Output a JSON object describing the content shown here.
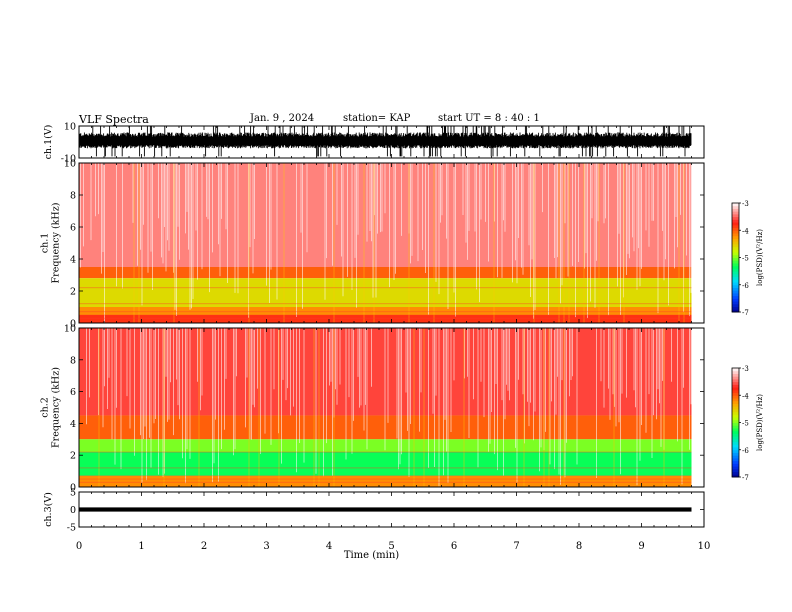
{
  "header": {
    "title": "VLF Spectra",
    "date": "Jan. 9 , 2024",
    "station": "station= KAP",
    "start": "start UT = 8 : 40 : 1"
  },
  "chart_data": [
    {
      "type": "line",
      "panel": "ch1-waveform",
      "ylabel": "ch.1(V)",
      "ylim": [
        -10,
        10
      ],
      "xlim": [
        0,
        10
      ],
      "yticks": [
        "10",
        "-10"
      ],
      "description_values": {
        "typical_upper": 6,
        "typical_lower": -4,
        "peak_upper": 10,
        "peak_lower": -9
      },
      "color": "#000000"
    },
    {
      "type": "heatmap",
      "panel": "ch1-spectrogram",
      "ylabel": "ch.1\nFrequency (kHz)",
      "ylim": [
        0,
        10
      ],
      "xlim": [
        0,
        10
      ],
      "yticks": [
        "0",
        "2",
        "4",
        "6",
        "8",
        "10"
      ],
      "data_end_x": 9.8,
      "bands": [
        {
          "from_khz": 3.5,
          "to_khz": 10,
          "level": -3.4
        },
        {
          "from_khz": 2.8,
          "to_khz": 3.5,
          "level": -4.0
        },
        {
          "from_khz": 1.0,
          "to_khz": 2.8,
          "level": -4.6
        },
        {
          "from_khz": 0.5,
          "to_khz": 1.0,
          "level": -4.2
        },
        {
          "from_khz": 0.0,
          "to_khz": 0.5,
          "level": -3.8
        }
      ],
      "colorbar": {
        "label": "log(PSD)(V²/Hz)",
        "min": -7,
        "max": -3,
        "ticks": [
          "-3",
          "-4",
          "-5",
          "-6",
          "-7"
        ]
      }
    },
    {
      "type": "heatmap",
      "panel": "ch2-spectrogram",
      "ylabel": "ch.2\nFrequency (kHz)",
      "ylim": [
        0,
        10
      ],
      "xlim": [
        0,
        10
      ],
      "yticks": [
        "0",
        "2",
        "4",
        "6",
        "8",
        "10"
      ],
      "data_end_x": 9.8,
      "bands": [
        {
          "from_khz": 4.5,
          "to_khz": 10,
          "level": -3.6
        },
        {
          "from_khz": 3.0,
          "to_khz": 4.5,
          "level": -4.0
        },
        {
          "from_khz": 2.2,
          "to_khz": 3.0,
          "level": -5.0
        },
        {
          "from_khz": 0.7,
          "to_khz": 2.2,
          "level": -5.3
        },
        {
          "from_khz": 0.0,
          "to_khz": 0.7,
          "level": -4.2
        }
      ],
      "colorbar": {
        "label": "log(PSD)(V²/Hz)",
        "min": -7,
        "max": -3,
        "ticks": [
          "-3",
          "-4",
          "-5",
          "-6",
          "-7"
        ]
      }
    },
    {
      "type": "line",
      "panel": "ch3-waveform",
      "ylabel": "ch.3(V)",
      "ylim": [
        -5,
        5
      ],
      "xlim": [
        0,
        10
      ],
      "yticks": [
        "5",
        "0",
        "-5"
      ],
      "level": 0,
      "thickness_v": 1.2,
      "data_end_x": 9.8,
      "color": "#000000"
    }
  ],
  "xaxis": {
    "label": "Time (min)",
    "ticks": [
      "0",
      "1",
      "2",
      "3",
      "4",
      "5",
      "6",
      "7",
      "8",
      "9",
      "10"
    ]
  }
}
